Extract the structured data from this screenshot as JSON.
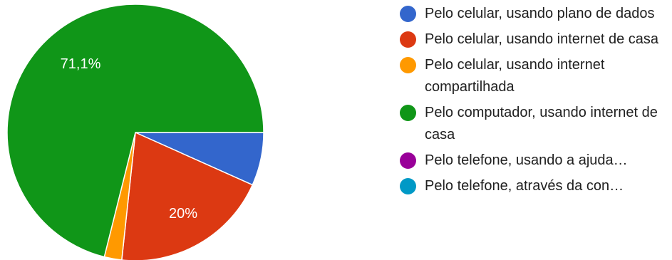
{
  "chart_data": {
    "type": "pie",
    "categories": [
      "Pelo celular, usando plano de dados",
      "Pelo celular, usando internet de casa",
      "Pelo celular, usando internet compartilhada",
      "Pelo computador, usando internet de casa",
      "Pelo telefone, usando a ajuda…",
      "Pelo telefone, através da con…"
    ],
    "values": [
      6.7,
      20,
      2.2,
      71.1,
      0,
      0
    ],
    "data_labels": [
      "",
      "20%",
      "",
      "71,1%",
      "",
      ""
    ],
    "colors": [
      "#3366cc",
      "#dc3912",
      "#ff9900",
      "#109618",
      "#990099",
      "#0099c6"
    ],
    "legend_position": "right"
  }
}
